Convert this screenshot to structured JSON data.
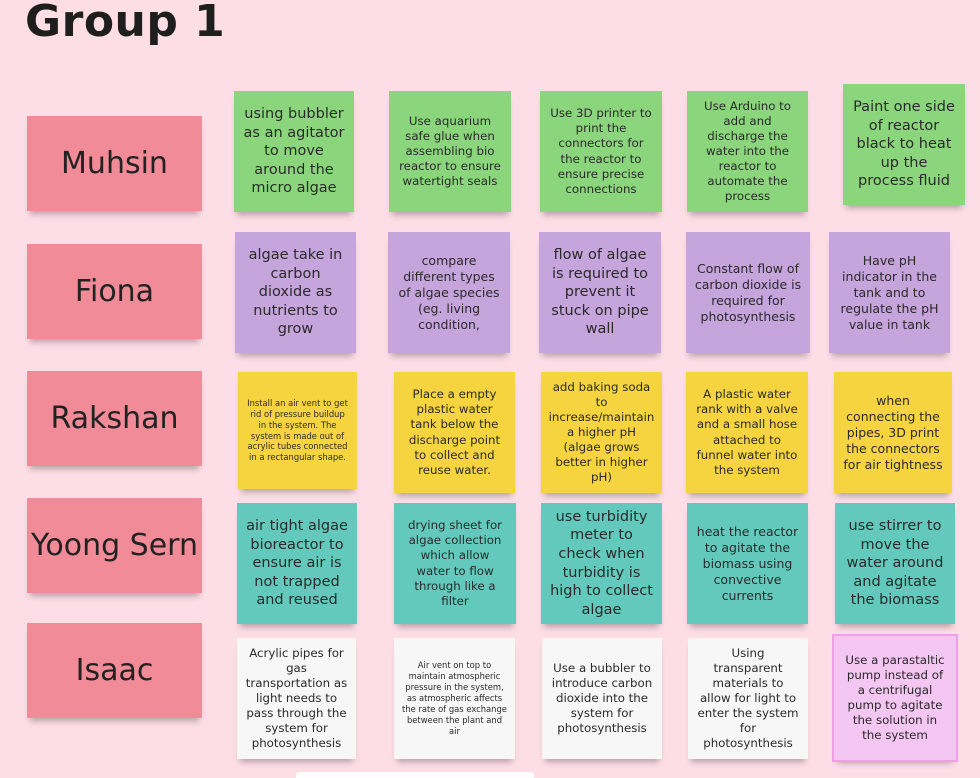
{
  "board": {
    "title": "Group 1"
  },
  "rows": [
    {
      "name": "Muhsin",
      "notes": [
        "using bubbler as an agitator to move around the micro algae",
        "Use aquarium safe glue when assembling bio reactor to ensure watertight seals",
        "Use 3D printer to print the connectors for the reactor to ensure precise connections",
        "Use Arduino to add and discharge the water into the reactor to automate the process",
        "Paint one side of reactor black to heat up the process fluid"
      ]
    },
    {
      "name": "Fiona",
      "notes": [
        "algae take in carbon dioxide as nutrients to grow",
        "compare different types of algae species (eg. living condition,",
        "flow of algae is required to prevent it stuck on pipe wall",
        "Constant flow of carbon dioxide is required for photosynthesis",
        "Have pH indicator in the tank and to regulate the pH value in tank"
      ]
    },
    {
      "name": "Rakshan",
      "notes": [
        "Install an air vent to get rid of pressure buildup in the system. The system is made out of acrylic tubes connected in a rectangular shape.",
        "Place a empty plastic water tank below the discharge point to collect and reuse water.",
        "add baking soda to increase/maintain a higher pH (algae grows better in higher pH)",
        "A plastic water rank with a valve and a small hose attached to funnel water into the system",
        "when connecting the pipes, 3D print the connectors for air tightness"
      ]
    },
    {
      "name": "Yoong Sern",
      "notes": [
        "air tight algae bioreactor to ensure air is not trapped and reused",
        "drying sheet for algae collection which allow water to flow through like a filter",
        "use turbidity meter to check when turbidity is high to collect algae",
        "heat the reactor to agitate the biomass using convective currents",
        "use stirrer to move the water around and agitate the biomass"
      ]
    },
    {
      "name": "Isaac",
      "notes": [
        "Acrylic pipes for gas transportation as light needs to pass through the system for photosynthesis",
        "Air vent on top to maintain atmospheric pressure in the system, as atmospheric affects the rate of gas exchange between the plant and air",
        "Use a bubbler to introduce carbon dioxide into the system for photosynthesis",
        "Using transparent materials to allow for light to enter the system for photosynthesis",
        "Use a parastaltic pump instead of a centrifugal pump to agitate the solution in the system"
      ]
    }
  ],
  "colors": {
    "background": "#fddde6",
    "name_note": "#f08b97",
    "green_note": "#8bd57d",
    "purple_note": "#c6a4dc",
    "yellow_note": "#f6d43f",
    "teal_note": "#63c9bd",
    "white_note": "#f7f7f7",
    "pink_note": "#f4c6f2"
  }
}
